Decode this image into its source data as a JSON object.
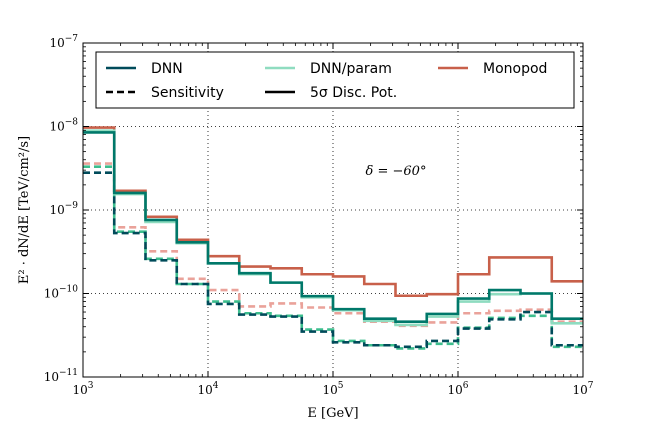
{
  "chart_data": {
    "type": "line",
    "step": "post",
    "x_scale": "log",
    "y_scale": "log",
    "xlim": [
      1000,
      10000000
    ],
    "ylim": [
      1e-11,
      1e-07
    ],
    "grid": true,
    "legend_position": "top",
    "xlabel": "E [GeV]",
    "ylabel": "E² · dN/dE [TeV/cm²/s]",
    "annotation": "δ = −60°",
    "x_ticks": [
      {
        "value": 1000,
        "base": "10",
        "exp": "3"
      },
      {
        "value": 10000,
        "base": "10",
        "exp": "4"
      },
      {
        "value": 100000,
        "base": "10",
        "exp": "5"
      },
      {
        "value": 1000000,
        "base": "10",
        "exp": "6"
      },
      {
        "value": 10000000,
        "base": "10",
        "exp": "7"
      }
    ],
    "y_ticks": [
      {
        "value": 1e-11,
        "base": "10",
        "exp": "−11"
      },
      {
        "value": 1e-10,
        "base": "10",
        "exp": "−10"
      },
      {
        "value": 1e-09,
        "base": "10",
        "exp": "−9"
      },
      {
        "value": 1e-08,
        "base": "10",
        "exp": "−8"
      },
      {
        "value": 1e-07,
        "base": "10",
        "exp": "−7"
      }
    ],
    "bin_edges": [
      1000,
      1778,
      3162,
      5623,
      10000,
      17783,
      31623,
      56234,
      100000,
      177828,
      316228,
      562341,
      1000000,
      1778279,
      3162278,
      5623413,
      10000000
    ],
    "legend": [
      {
        "label": "DNN",
        "color": "#004B5A",
        "dash": "solid"
      },
      {
        "label": "DNN/param",
        "color": "#8FDCC0",
        "dash": "solid"
      },
      {
        "label": "Monopod",
        "color": "#C8604A",
        "dash": "solid"
      },
      {
        "label": "Sensitivity",
        "color": "#000000",
        "dash": "dashed"
      },
      {
        "label": "5σ Disc. Pot.",
        "color": "#000000",
        "dash": "solid"
      }
    ],
    "series": [
      {
        "name": "Monopod",
        "kind": "Sensitivity",
        "color": "#EAA29A",
        "dash": "dashed",
        "values": [
          3.6e-09,
          6.2e-10,
          3.2e-10,
          1.5e-10,
          1.1e-10,
          7e-11,
          7.6e-11,
          6.8e-11,
          5.8e-11,
          4.6e-11,
          4.1e-11,
          4.5e-11,
          5.8e-11,
          6.2e-11,
          6.4e-11,
          4.6e-11
        ]
      },
      {
        "name": "DNN/param",
        "kind": "Sensitivity",
        "color": "#3DBE8E",
        "dash": "dashed",
        "values": [
          3.3e-09,
          5.5e-10,
          2.6e-10,
          1.3e-10,
          8e-11,
          5.8e-11,
          5.4e-11,
          3.7e-11,
          2.7e-11,
          2.4e-11,
          2.2e-11,
          2.5e-11,
          3.9e-11,
          5.1e-11,
          5.4e-11,
          2.3e-11
        ]
      },
      {
        "name": "DNN",
        "kind": "Sensitivity",
        "color": "#004B5A",
        "dash": "dashed",
        "values": [
          2.8e-09,
          5.3e-10,
          2.5e-10,
          1.3e-10,
          7.5e-11,
          5.6e-11,
          5.3e-11,
          3.5e-11,
          2.6e-11,
          2.4e-11,
          2.3e-11,
          2.7e-11,
          3.8e-11,
          4.9e-11,
          6e-11,
          2.4e-11
        ]
      },
      {
        "name": "Monopod",
        "kind": "5σ Disc. Pot.",
        "color": "#C8604A",
        "dash": "solid",
        "values": [
          9.7e-09,
          1.7e-09,
          8.3e-10,
          4.4e-10,
          2.8e-10,
          2.1e-10,
          2e-10,
          1.7e-10,
          1.6e-10,
          1.3e-10,
          9.4e-11,
          9.8e-11,
          1.7e-10,
          2.7e-10,
          2.7e-10,
          1.4e-10
        ]
      },
      {
        "name": "DNN/param",
        "kind": "5σ Disc. Pot.",
        "color": "#8FDCC0",
        "dash": "solid",
        "values": [
          8.9e-09,
          1.55e-09,
          7.2e-10,
          4e-10,
          2.3e-10,
          1.7e-10,
          1.35e-10,
          9e-11,
          6.3e-11,
          4.7e-11,
          4.2e-11,
          5.3e-11,
          8e-11,
          9.8e-11,
          1e-10,
          4.4e-11
        ]
      },
      {
        "name": "DNN",
        "kind": "5σ Disc. Pot.",
        "color": "#00786A",
        "dash": "solid",
        "values": [
          8.5e-09,
          1.6e-09,
          7.6e-10,
          4.1e-10,
          2.3e-10,
          1.75e-10,
          1.35e-10,
          9.3e-11,
          6.5e-11,
          5e-11,
          4.6e-11,
          5.7e-11,
          8.7e-11,
          1.1e-10,
          1e-10,
          5e-11
        ]
      }
    ]
  }
}
